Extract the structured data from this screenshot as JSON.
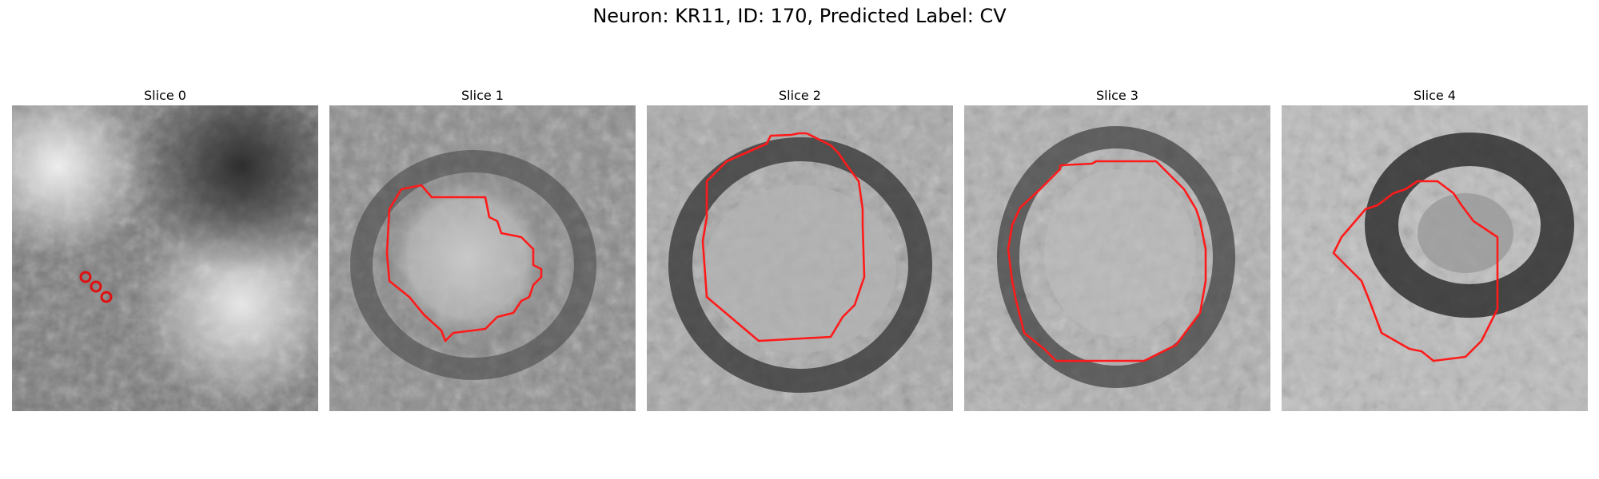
{
  "figure": {
    "title": "Neuron: KR11, ID: 170, Predicted Label: CV"
  },
  "panels": [
    {
      "title": "Slice 0"
    },
    {
      "title": "Slice 1"
    },
    {
      "title": "Slice 2"
    },
    {
      "title": "Slice 3"
    },
    {
      "title": "Slice 4"
    }
  ],
  "colors": {
    "contour": "#ff1a1a",
    "colormap": "grayscale"
  }
}
